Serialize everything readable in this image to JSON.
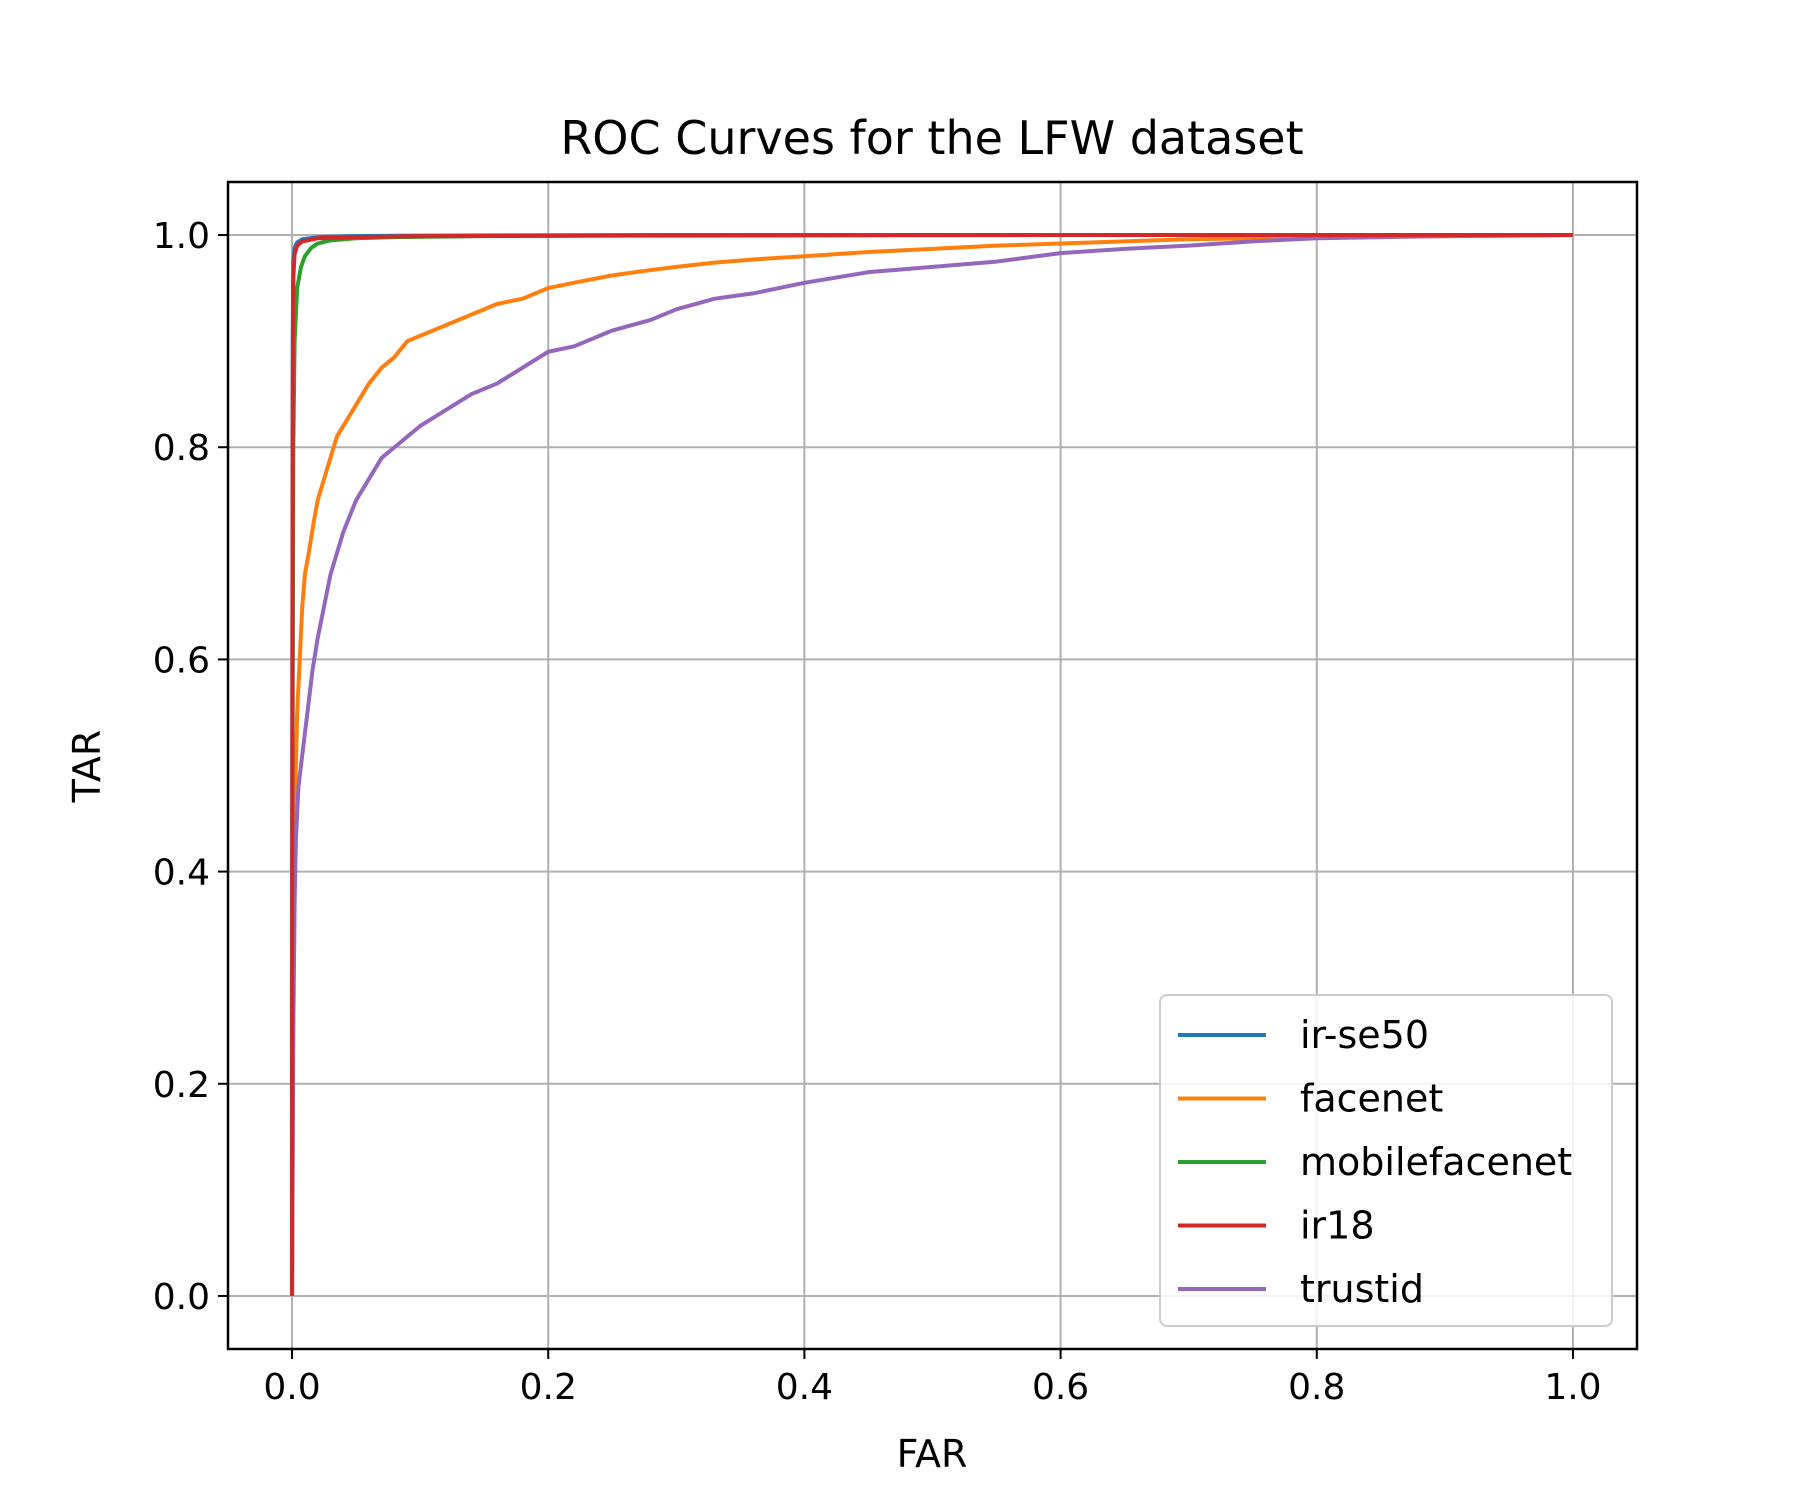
{
  "chart_data": {
    "type": "line",
    "title": "ROC Curves for the LFW dataset",
    "xlabel": "FAR",
    "ylabel": "TAR",
    "xlim": [
      -0.05,
      1.05
    ],
    "ylim": [
      -0.05,
      1.05
    ],
    "xticks": [
      0.0,
      0.2,
      0.4,
      0.6,
      0.8,
      1.0
    ],
    "yticks": [
      0.0,
      0.2,
      0.4,
      0.6,
      0.8,
      1.0
    ],
    "xtick_labels": [
      "0.0",
      "0.2",
      "0.4",
      "0.6",
      "0.8",
      "1.0"
    ],
    "ytick_labels": [
      "0.0",
      "0.2",
      "0.4",
      "0.6",
      "0.8",
      "1.0"
    ],
    "grid": true,
    "legend_position": "lower-right",
    "series": [
      {
        "name": "ir-se50",
        "color": "#1f77b4",
        "x": [
          0.0,
          0.0,
          0.0005,
          0.001,
          0.002,
          0.004,
          0.008,
          0.02,
          0.05,
          0.1,
          0.3,
          0.6,
          1.0
        ],
        "y": [
          0.0,
          0.3,
          0.9,
          0.975,
          0.988,
          0.993,
          0.996,
          0.998,
          0.999,
          0.9995,
          1.0,
          1.0,
          1.0
        ]
      },
      {
        "name": "facenet",
        "color": "#ff7f0e",
        "x": [
          0.0,
          0.001,
          0.002,
          0.004,
          0.006,
          0.008,
          0.01,
          0.013,
          0.017,
          0.02,
          0.025,
          0.03,
          0.035,
          0.04,
          0.05,
          0.06,
          0.07,
          0.08,
          0.09,
          0.1,
          0.12,
          0.14,
          0.16,
          0.18,
          0.2,
          0.22,
          0.25,
          0.28,
          0.3,
          0.33,
          0.36,
          0.4,
          0.45,
          0.5,
          0.55,
          0.6,
          0.65,
          0.7,
          0.75,
          0.8,
          0.9,
          1.0
        ],
        "y": [
          0.0,
          0.3,
          0.45,
          0.55,
          0.6,
          0.65,
          0.68,
          0.7,
          0.73,
          0.75,
          0.77,
          0.79,
          0.81,
          0.82,
          0.84,
          0.86,
          0.875,
          0.885,
          0.9,
          0.905,
          0.915,
          0.925,
          0.935,
          0.94,
          0.95,
          0.955,
          0.962,
          0.967,
          0.97,
          0.974,
          0.977,
          0.98,
          0.984,
          0.987,
          0.99,
          0.992,
          0.994,
          0.996,
          0.997,
          0.998,
          0.999,
          1.0
        ]
      },
      {
        "name": "mobilefacenet",
        "color": "#2ca02c",
        "x": [
          0.0,
          0.0,
          0.001,
          0.002,
          0.004,
          0.007,
          0.01,
          0.015,
          0.02,
          0.03,
          0.05,
          0.08,
          0.15,
          0.3,
          0.6,
          1.0
        ],
        "y": [
          0.0,
          0.3,
          0.8,
          0.9,
          0.95,
          0.97,
          0.98,
          0.988,
          0.992,
          0.995,
          0.997,
          0.998,
          0.999,
          1.0,
          1.0,
          1.0
        ]
      },
      {
        "name": "ir18",
        "color": "#d62728",
        "x": [
          0.0,
          0.0,
          0.0005,
          0.001,
          0.002,
          0.004,
          0.008,
          0.02,
          0.05,
          0.1,
          0.3,
          0.6,
          1.0
        ],
        "y": [
          0.0,
          0.3,
          0.85,
          0.96,
          0.982,
          0.99,
          0.994,
          0.997,
          0.998,
          0.999,
          0.9995,
          1.0,
          1.0
        ]
      },
      {
        "name": "trustid",
        "color": "#9467bd",
        "x": [
          0.0,
          0.001,
          0.002,
          0.003,
          0.005,
          0.007,
          0.01,
          0.013,
          0.016,
          0.02,
          0.025,
          0.03,
          0.035,
          0.04,
          0.05,
          0.06,
          0.07,
          0.08,
          0.09,
          0.1,
          0.12,
          0.14,
          0.16,
          0.18,
          0.2,
          0.22,
          0.25,
          0.28,
          0.3,
          0.33,
          0.36,
          0.4,
          0.45,
          0.5,
          0.55,
          0.6,
          0.65,
          0.7,
          0.75,
          0.8,
          0.9,
          1.0
        ],
        "y": [
          0.0,
          0.25,
          0.37,
          0.43,
          0.48,
          0.5,
          0.53,
          0.56,
          0.59,
          0.62,
          0.65,
          0.68,
          0.7,
          0.72,
          0.75,
          0.77,
          0.79,
          0.8,
          0.81,
          0.82,
          0.835,
          0.85,
          0.86,
          0.875,
          0.89,
          0.895,
          0.91,
          0.92,
          0.93,
          0.94,
          0.945,
          0.955,
          0.965,
          0.97,
          0.975,
          0.983,
          0.987,
          0.99,
          0.994,
          0.997,
          0.999,
          1.0
        ]
      }
    ]
  }
}
